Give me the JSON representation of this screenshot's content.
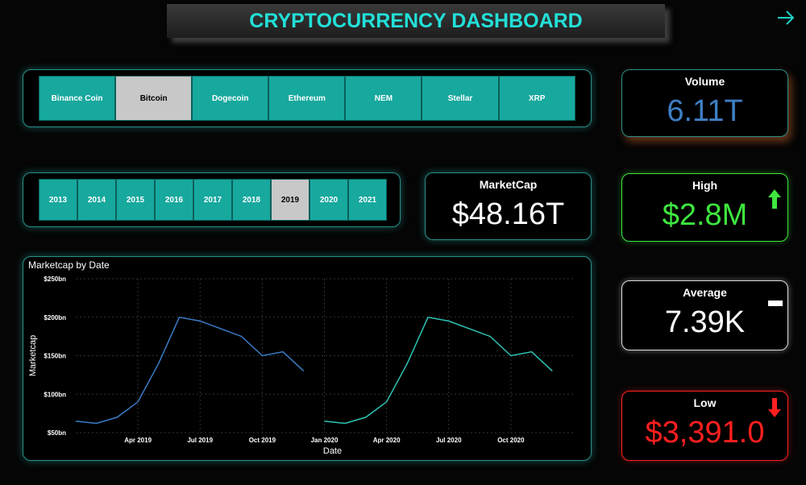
{
  "header": {
    "title": "CRYPTOCURRENCY DASHBOARD"
  },
  "coin_slicer": [
    {
      "label": "Binance Coin",
      "selected": false
    },
    {
      "label": "Bitcoin",
      "selected": true
    },
    {
      "label": "Dogecoin",
      "selected": false
    },
    {
      "label": "Ethereum",
      "selected": false
    },
    {
      "label": "NEM",
      "selected": false
    },
    {
      "label": "Stellar",
      "selected": false
    },
    {
      "label": "XRP",
      "selected": false
    }
  ],
  "year_slicer": [
    {
      "label": "2013",
      "selected": false
    },
    {
      "label": "2014",
      "selected": false
    },
    {
      "label": "2015",
      "selected": false
    },
    {
      "label": "2016",
      "selected": false
    },
    {
      "label": "2017",
      "selected": false
    },
    {
      "label": "2018",
      "selected": false
    },
    {
      "label": "2019",
      "selected": true
    },
    {
      "label": "2020",
      "selected": false
    },
    {
      "label": "2021",
      "selected": false
    }
  ],
  "cards": {
    "marketcap": {
      "label": "MarketCap",
      "value": "$48.16T",
      "color": "#ffffff"
    },
    "volume": {
      "label": "Volume",
      "value": "6.11T",
      "color": "#3f7fc4"
    },
    "high": {
      "label": "High",
      "value": "$2.8M",
      "color": "#3ee63e"
    },
    "average": {
      "label": "Average",
      "value": "7.39K",
      "color": "#ffffff"
    },
    "low": {
      "label": "Low",
      "value": "$3,391.0",
      "color": "#ff1f1f"
    }
  },
  "chart_data": {
    "type": "line",
    "title": "Marketcap by Date",
    "x_label": "Date",
    "y_label": "Marketcap",
    "x": [
      "2019-01",
      "2019-02",
      "2019-03",
      "2019-04",
      "2019-05",
      "2019-06",
      "2019-07",
      "2019-08",
      "2019-09",
      "2019-10",
      "2019-11",
      "2019-12",
      "2020-01",
      "2020-02",
      "2020-03",
      "2020-04",
      "2020-05",
      "2020-06",
      "2020-07",
      "2020-08",
      "2020-09",
      "2020-10",
      "2020-11",
      "2020-12"
    ],
    "series": [
      {
        "color": "#3a7cc8",
        "values": [
          65,
          62,
          70,
          90,
          140,
          200,
          195,
          185,
          175,
          150,
          155,
          130,
          null,
          null,
          null,
          null,
          null,
          null,
          null,
          null,
          null,
          null,
          null,
          null
        ]
      },
      {
        "color": "#2ec4b6",
        "values": [
          null,
          null,
          null,
          null,
          null,
          null,
          null,
          null,
          null,
          null,
          null,
          null,
          65,
          62,
          70,
          90,
          140,
          200,
          195,
          185,
          175,
          150,
          155,
          130
        ]
      }
    ],
    "xlim": [
      "2019-01",
      "2021-01"
    ],
    "xticks": [
      {
        "value": "2019-04",
        "label": "Apr 2019"
      },
      {
        "value": "2019-07",
        "label": "Jul 2019"
      },
      {
        "value": "2019-10",
        "label": "Oct 2019"
      },
      {
        "value": "2020-01",
        "label": "Jan 2020"
      },
      {
        "value": "2020-04",
        "label": "Apr 2020"
      },
      {
        "value": "2020-07",
        "label": "Jul 2020"
      },
      {
        "value": "2020-10",
        "label": "Oct 2020"
      }
    ],
    "ylim": [
      50,
      250
    ],
    "yticks": [
      {
        "value": 50,
        "label": "$50bn"
      },
      {
        "value": 100,
        "label": "$100bn"
      },
      {
        "value": 150,
        "label": "$150bn"
      },
      {
        "value": 200,
        "label": "$200bn"
      },
      {
        "value": 250,
        "label": "$250bn"
      }
    ],
    "grid": true
  }
}
